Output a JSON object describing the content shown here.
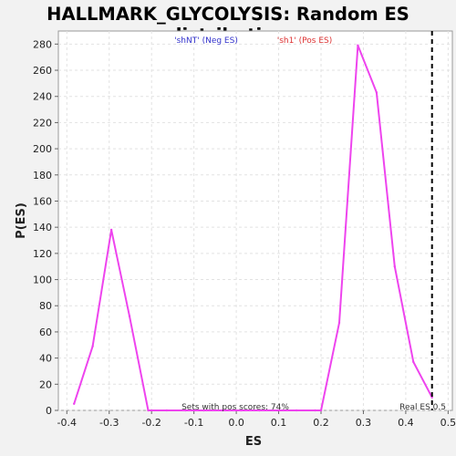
{
  "chart_data": {
    "type": "line",
    "title": "HALLMARK_GLYCOLYSIS: Random ES distribution",
    "xlabel": "ES",
    "ylabel": "P(ES)",
    "xlim": [
      -0.42,
      0.51
    ],
    "ylim": [
      0,
      290
    ],
    "x_ticks": [
      -0.4,
      -0.3,
      -0.2,
      -0.1,
      0.0,
      0.1,
      0.2,
      0.3,
      0.4,
      0.5
    ],
    "x_tick_labels": [
      "-0.4",
      "-0.3",
      "-0.2",
      "-0.1",
      "0.0",
      "0.1",
      "0.2",
      "0.3",
      "0.4",
      "0.5"
    ],
    "y_ticks": [
      0,
      20,
      40,
      60,
      80,
      100,
      120,
      140,
      160,
      180,
      200,
      220,
      240,
      260,
      280
    ],
    "grid": true,
    "series": [
      {
        "color": "#ee44ee",
        "x": [
          -0.383,
          -0.339,
          -0.295,
          -0.252,
          -0.208,
          -0.164,
          -0.12,
          -0.077,
          -0.033,
          0.011,
          0.055,
          0.098,
          0.142,
          0.186,
          0.2,
          0.243,
          0.287,
          0.331,
          0.374,
          0.418,
          0.462
        ],
        "y": [
          5,
          49,
          138,
          72,
          0,
          0,
          0,
          0,
          0,
          0,
          0,
          0,
          0,
          0,
          0,
          67,
          279,
          243,
          110,
          37,
          10
        ]
      }
    ],
    "real_es": 0.462,
    "annotations": {
      "neg_label": "'shNT' (Neg ES)",
      "pos_label": "'sh1' (Pos ES)",
      "pos_scores": "Sets with pos scores: 74%",
      "real_es_label": "Real ES 0.5"
    },
    "colors": {
      "neg": "#3333cc",
      "pos": "#dd3333",
      "line": "#ee44ee",
      "plot_bg": "#ffffff",
      "page_bg": "#f2f2f2"
    }
  }
}
